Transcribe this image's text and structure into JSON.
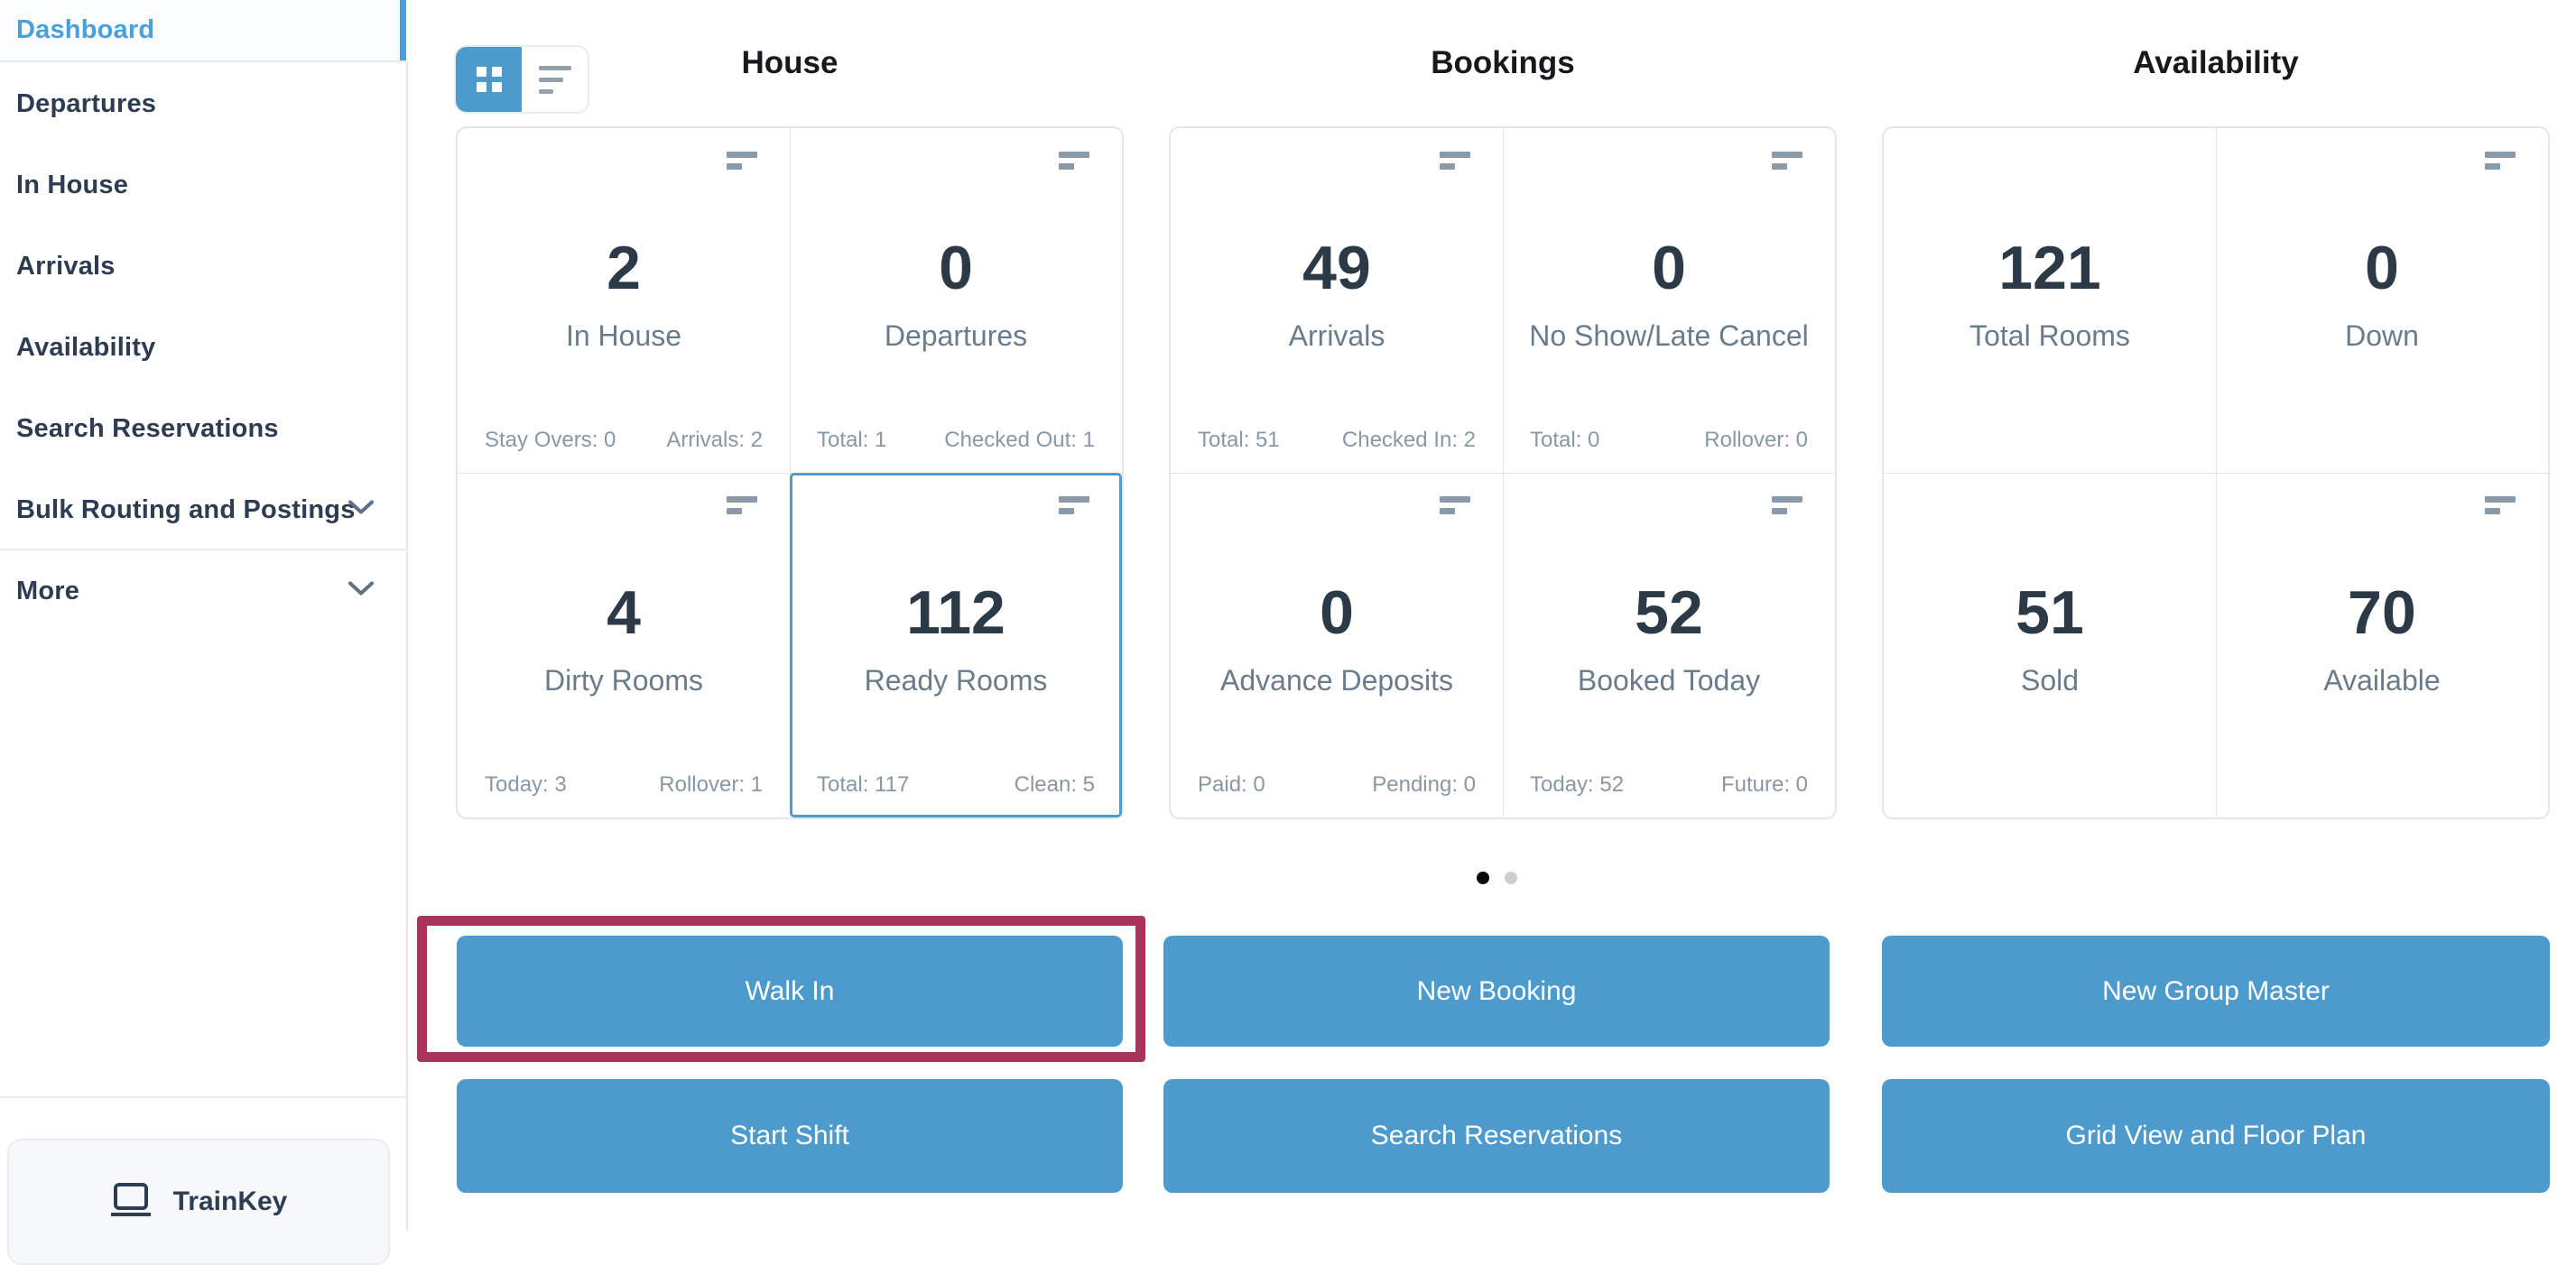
{
  "sidebar": {
    "items": [
      {
        "label": "Dashboard",
        "active": true,
        "chevron": false
      },
      {
        "label": "Departures",
        "active": false,
        "chevron": false
      },
      {
        "label": "In House",
        "active": false,
        "chevron": false
      },
      {
        "label": "Arrivals",
        "active": false,
        "chevron": false
      },
      {
        "label": "Availability",
        "active": false,
        "chevron": false
      },
      {
        "label": "Search Reservations",
        "active": false,
        "chevron": false
      },
      {
        "label": "Bulk Routing and Postings",
        "active": false,
        "chevron": true
      },
      {
        "label": "More",
        "active": false,
        "chevron": true
      }
    ],
    "brand": "TrainKey"
  },
  "view_toggle": {
    "modes": [
      "grid",
      "list"
    ],
    "active": "grid"
  },
  "sections": [
    {
      "title": "House",
      "cards": [
        {
          "value": "2",
          "label": "In House",
          "stat_left": "Stay Overs: 0",
          "stat_right": "Arrivals: 2",
          "icon": true,
          "selected": false
        },
        {
          "value": "0",
          "label": "Departures",
          "stat_left": "Total: 1",
          "stat_right": "Checked Out: 1",
          "icon": true,
          "selected": false
        },
        {
          "value": "4",
          "label": "Dirty Rooms",
          "stat_left": "Today: 3",
          "stat_right": "Rollover: 1",
          "icon": true,
          "selected": false
        },
        {
          "value": "112",
          "label": "Ready Rooms",
          "stat_left": "Total: 117",
          "stat_right": "Clean: 5",
          "icon": true,
          "selected": true
        }
      ]
    },
    {
      "title": "Bookings",
      "cards": [
        {
          "value": "49",
          "label": "Arrivals",
          "stat_left": "Total: 51",
          "stat_right": "Checked In: 2",
          "icon": true,
          "selected": false
        },
        {
          "value": "0",
          "label": "No Show/Late Cancel",
          "stat_left": "Total: 0",
          "stat_right": "Rollover: 0",
          "icon": true,
          "selected": false
        },
        {
          "value": "0",
          "label": "Advance Deposits",
          "stat_left": "Paid: 0",
          "stat_right": "Pending: 0",
          "icon": true,
          "selected": false
        },
        {
          "value": "52",
          "label": "Booked Today",
          "stat_left": "Today: 52",
          "stat_right": "Future: 0",
          "icon": true,
          "selected": false
        }
      ]
    },
    {
      "title": "Availability",
      "cards": [
        {
          "value": "121",
          "label": "Total Rooms",
          "stat_left": "",
          "stat_right": "",
          "icon": false,
          "selected": false
        },
        {
          "value": "0",
          "label": "Down",
          "stat_left": "",
          "stat_right": "",
          "icon": true,
          "selected": false
        },
        {
          "value": "51",
          "label": "Sold",
          "stat_left": "",
          "stat_right": "",
          "icon": false,
          "selected": false
        },
        {
          "value": "70",
          "label": "Available",
          "stat_left": "",
          "stat_right": "",
          "icon": true,
          "selected": false
        }
      ]
    }
  ],
  "pagination": {
    "dot_count": 2,
    "active_dot": 1
  },
  "actions": [
    {
      "label": "Walk In",
      "highlighted": true
    },
    {
      "label": "New Booking",
      "highlighted": false
    },
    {
      "label": "New Group Master",
      "highlighted": false
    },
    {
      "label": "Start Shift",
      "highlighted": false
    },
    {
      "label": "Search Reservations",
      "highlighted": false
    },
    {
      "label": "Grid View and Floor Plan",
      "highlighted": false
    }
  ],
  "colors": {
    "accent_blue": "#4d9acd",
    "active_link_blue": "#4aa0d8",
    "highlight_crimson": "#a93459",
    "number_dark": "#2c3946",
    "label_gray": "#6a7b8b",
    "muted_gray": "#8a97a4"
  }
}
